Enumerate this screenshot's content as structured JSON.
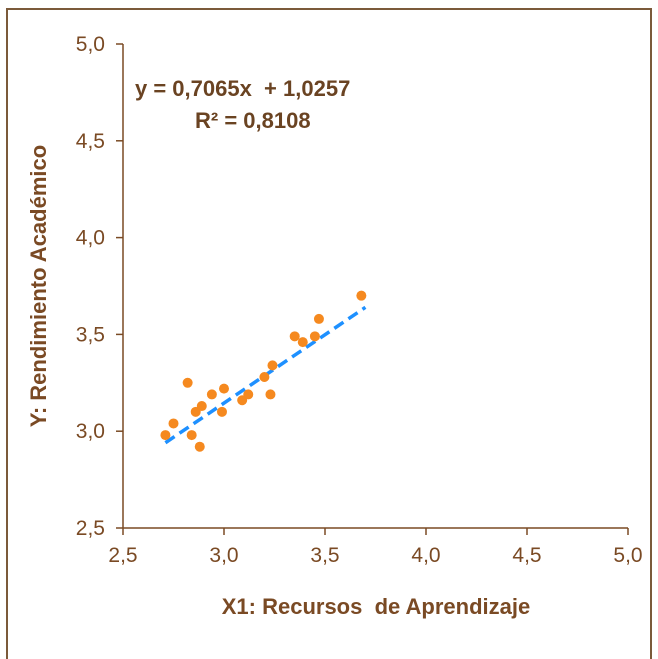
{
  "chart_data": {
    "type": "scatter",
    "xlabel": "X1: Recursos  de Aprendizaje",
    "ylabel": "Y: Rendimiento Académico",
    "xlim": [
      2.5,
      5.0
    ],
    "ylim": [
      2.5,
      5.0
    ],
    "x_ticks": [
      "2,5",
      "3,0",
      "3,5",
      "4,0",
      "4,5",
      "5,0"
    ],
    "y_ticks": [
      "2,5",
      "3,0",
      "3,5",
      "4,0",
      "4,5",
      "5,0"
    ],
    "grid": false,
    "legend": "none",
    "series": [
      {
        "points": [
          {
            "x": 2.71,
            "y": 2.98
          },
          {
            "x": 2.75,
            "y": 3.04
          },
          {
            "x": 2.82,
            "y": 3.25
          },
          {
            "x": 2.84,
            "y": 2.98
          },
          {
            "x": 2.86,
            "y": 3.1
          },
          {
            "x": 2.89,
            "y": 3.13
          },
          {
            "x": 2.88,
            "y": 2.92
          },
          {
            "x": 2.94,
            "y": 3.19
          },
          {
            "x": 2.99,
            "y": 3.1
          },
          {
            "x": 3.0,
            "y": 3.22
          },
          {
            "x": 3.09,
            "y": 3.16
          },
          {
            "x": 3.12,
            "y": 3.19
          },
          {
            "x": 3.2,
            "y": 3.28
          },
          {
            "x": 3.23,
            "y": 3.19
          },
          {
            "x": 3.24,
            "y": 3.34
          },
          {
            "x": 3.35,
            "y": 3.49
          },
          {
            "x": 3.39,
            "y": 3.46
          },
          {
            "x": 3.45,
            "y": 3.49
          },
          {
            "x": 3.47,
            "y": 3.58
          },
          {
            "x": 3.68,
            "y": 3.7
          }
        ]
      }
    ],
    "trendline": {
      "type": "linear",
      "slope": 0.7065,
      "intercept": 1.0257,
      "x_range": [
        2.71,
        3.7
      ],
      "equation": "y = 0,7065x  + 1,0257",
      "r_squared": "R² = 0,8108"
    },
    "colors": {
      "points": "#f5891f",
      "trendline": "#1e90ff",
      "axis": "#7a4a24",
      "text": "#7a4a24",
      "frame": "#7b5a3a"
    }
  }
}
